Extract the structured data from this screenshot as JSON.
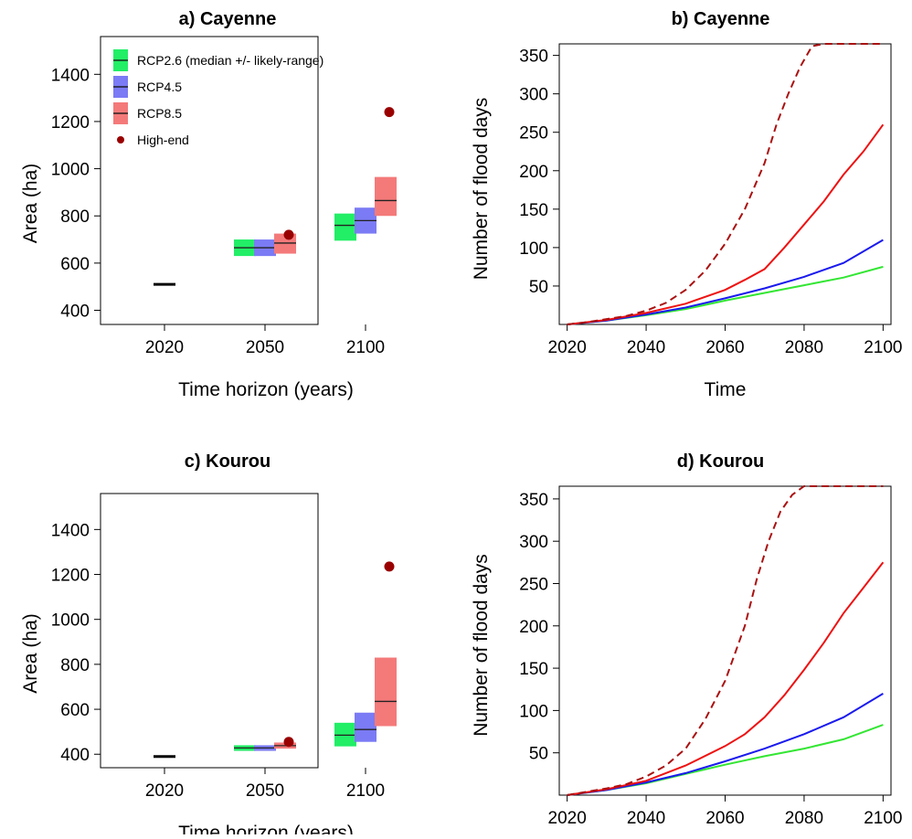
{
  "chart_data": [
    {
      "panel": "a",
      "type": "box-range",
      "title": "a) Cayenne",
      "xlabel": "Time horizon (years)",
      "ylabel": "Area (ha)",
      "categories": [
        "2020",
        "2050",
        "2100"
      ],
      "ylim": [
        340,
        1560
      ],
      "yticks": [
        400,
        600,
        800,
        1000,
        1200,
        1400
      ],
      "legend": {
        "position": "top-left",
        "items": [
          {
            "label": "RCP2.6 (median +/- likely-range)",
            "symbol": "box"
          },
          {
            "label": "RCP4.5",
            "symbol": "box"
          },
          {
            "label": "RCP8.5",
            "symbol": "box"
          },
          {
            "label": "High-end",
            "symbol": "dot"
          }
        ]
      },
      "current": {
        "category": "2020",
        "value": 510
      },
      "series": [
        {
          "name": "RCP2.6",
          "color": "#22ee66",
          "boxes": [
            {
              "category": "2050",
              "low": 630,
              "median": 665,
              "high": 700
            },
            {
              "category": "2100",
              "low": 695,
              "median": 760,
              "high": 810
            }
          ]
        },
        {
          "name": "RCP4.5",
          "color": "#7b7bf5",
          "boxes": [
            {
              "category": "2050",
              "low": 630,
              "median": 665,
              "high": 700
            },
            {
              "category": "2100",
              "low": 725,
              "median": 780,
              "high": 835
            }
          ]
        },
        {
          "name": "RCP8.5",
          "color": "#f47a7a",
          "boxes": [
            {
              "category": "2050",
              "low": 640,
              "median": 685,
              "high": 725
            },
            {
              "category": "2100",
              "low": 800,
              "median": 865,
              "high": 965
            }
          ]
        }
      ],
      "high_end": {
        "name": "High-end",
        "color": "#990000",
        "points": [
          {
            "category": "2050",
            "value": 720
          },
          {
            "category": "2100",
            "value": 1240
          }
        ]
      }
    },
    {
      "panel": "b",
      "type": "line",
      "title": "b) Cayenne",
      "xlabel": "Time",
      "ylabel": "Number of flood days",
      "xlim": [
        2018,
        2102
      ],
      "ylim": [
        0,
        365
      ],
      "xticks": [
        2020,
        2040,
        2060,
        2080,
        2100
      ],
      "yticks": [
        50,
        100,
        150,
        200,
        250,
        300,
        350
      ],
      "series": [
        {
          "name": "RCP2.6",
          "color": "#33e633",
          "dash": false,
          "x": [
            2020,
            2030,
            2040,
            2050,
            2060,
            2070,
            2080,
            2090,
            2100
          ],
          "y": [
            0,
            5,
            12,
            20,
            31,
            41,
            51,
            61,
            75
          ]
        },
        {
          "name": "RCP4.5",
          "color": "#1a1aee",
          "dash": false,
          "x": [
            2020,
            2030,
            2040,
            2050,
            2060,
            2070,
            2080,
            2090,
            2100
          ],
          "y": [
            0,
            5,
            13,
            22,
            34,
            47,
            62,
            80,
            110
          ]
        },
        {
          "name": "RCP8.5",
          "color": "#ee1111",
          "dash": false,
          "x": [
            2020,
            2030,
            2040,
            2050,
            2060,
            2065,
            2070,
            2075,
            2080,
            2085,
            2090,
            2095,
            2100
          ],
          "y": [
            0,
            6,
            15,
            27,
            45,
            58,
            72,
            100,
            130,
            160,
            195,
            225,
            260
          ]
        },
        {
          "name": "High-end",
          "color": "#aa1111",
          "dash": true,
          "x": [
            2020,
            2025,
            2030,
            2035,
            2040,
            2045,
            2050,
            2055,
            2060,
            2065,
            2070,
            2073,
            2076,
            2079,
            2082,
            2085,
            2090,
            2100
          ],
          "y": [
            0,
            3,
            7,
            11,
            18,
            28,
            45,
            70,
            105,
            150,
            210,
            260,
            300,
            335,
            362,
            365,
            365,
            365
          ]
        }
      ]
    },
    {
      "panel": "c",
      "type": "box-range",
      "title": "c) Kourou",
      "xlabel": "Time horizon (years)",
      "ylabel": "Area (ha)",
      "categories": [
        "2020",
        "2050",
        "2100"
      ],
      "ylim": [
        340,
        1560
      ],
      "yticks": [
        400,
        600,
        800,
        1000,
        1200,
        1400
      ],
      "current": {
        "category": "2020",
        "value": 390
      },
      "series": [
        {
          "name": "RCP2.6",
          "color": "#22ee66",
          "boxes": [
            {
              "category": "2050",
              "low": 415,
              "median": 428,
              "high": 440
            },
            {
              "category": "2100",
              "low": 435,
              "median": 485,
              "high": 540
            }
          ]
        },
        {
          "name": "RCP4.5",
          "color": "#7b7bf5",
          "boxes": [
            {
              "category": "2050",
              "low": 415,
              "median": 428,
              "high": 440
            },
            {
              "category": "2100",
              "low": 455,
              "median": 510,
              "high": 585
            }
          ]
        },
        {
          "name": "RCP8.5",
          "color": "#f47a7a",
          "boxes": [
            {
              "category": "2050",
              "low": 425,
              "median": 438,
              "high": 452
            },
            {
              "category": "2100",
              "low": 525,
              "median": 635,
              "high": 830
            }
          ]
        }
      ],
      "high_end": {
        "name": "High-end",
        "color": "#990000",
        "points": [
          {
            "category": "2050",
            "value": 455
          },
          {
            "category": "2100",
            "value": 1235
          }
        ]
      }
    },
    {
      "panel": "d",
      "type": "line",
      "title": "d) Kourou",
      "xlabel": "Time",
      "ylabel": "Number of flood days",
      "xlim": [
        2018,
        2102
      ],
      "ylim": [
        0,
        365
      ],
      "xticks": [
        2020,
        2040,
        2060,
        2080,
        2100
      ],
      "yticks": [
        50,
        100,
        150,
        200,
        250,
        300,
        350
      ],
      "series": [
        {
          "name": "RCP2.6",
          "color": "#33e633",
          "dash": false,
          "x": [
            2020,
            2030,
            2040,
            2050,
            2060,
            2070,
            2080,
            2090,
            2100
          ],
          "y": [
            0,
            6,
            14,
            25,
            36,
            46,
            55,
            66,
            83
          ]
        },
        {
          "name": "RCP4.5",
          "color": "#1a1aee",
          "dash": false,
          "x": [
            2020,
            2030,
            2040,
            2050,
            2060,
            2070,
            2080,
            2090,
            2100
          ],
          "y": [
            0,
            6,
            15,
            26,
            40,
            55,
            72,
            92,
            120
          ]
        },
        {
          "name": "RCP8.5",
          "color": "#ee1111",
          "dash": false,
          "x": [
            2020,
            2030,
            2040,
            2050,
            2060,
            2065,
            2070,
            2075,
            2080,
            2085,
            2090,
            2095,
            2100
          ],
          "y": [
            0,
            7,
            17,
            35,
            58,
            72,
            92,
            118,
            148,
            180,
            215,
            245,
            275
          ]
        },
        {
          "name": "High-end",
          "color": "#aa1111",
          "dash": true,
          "x": [
            2020,
            2025,
            2030,
            2035,
            2040,
            2045,
            2050,
            2055,
            2060,
            2065,
            2068,
            2071,
            2074,
            2077,
            2080,
            2085,
            2090,
            2100
          ],
          "y": [
            0,
            4,
            8,
            13,
            22,
            35,
            55,
            90,
            135,
            200,
            255,
            300,
            335,
            355,
            365,
            365,
            365,
            365
          ]
        }
      ]
    }
  ]
}
